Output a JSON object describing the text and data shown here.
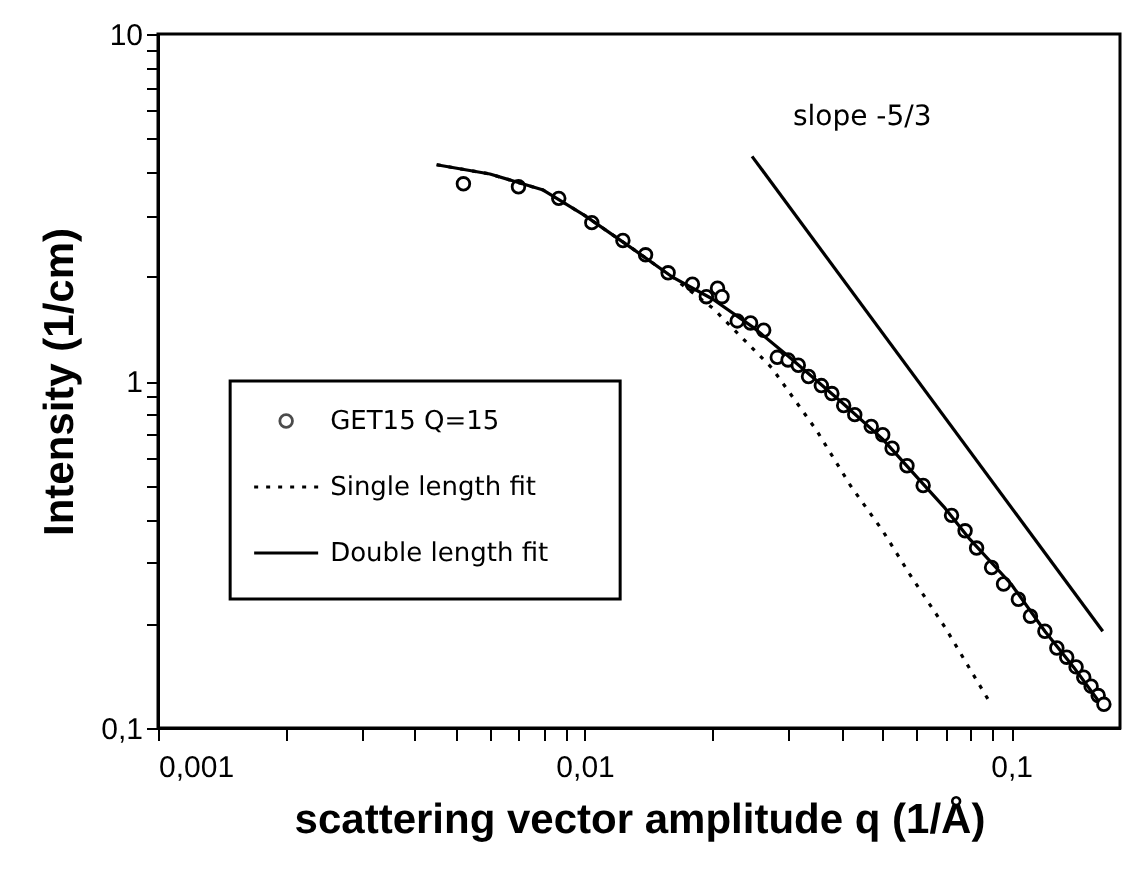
{
  "chart_data": {
    "type": "scatter",
    "xlabel": "scattering vector amplitude q (1/Å)",
    "ylabel": "Intensity (1/cm)",
    "log": "xy",
    "legend": "left",
    "xlim": [
      0.001,
      0.18
    ],
    "ylim": [
      0.1,
      10
    ],
    "xticks": [
      {
        "value": 0.001,
        "label": "0,001"
      },
      {
        "value": 0.002,
        "label": null
      },
      {
        "value": 0.003,
        "label": null
      },
      {
        "value": 0.004,
        "label": null
      },
      {
        "value": 0.005,
        "label": null
      },
      {
        "value": 0.006,
        "label": null
      },
      {
        "value": 0.007,
        "label": null
      },
      {
        "value": 0.008,
        "label": null
      },
      {
        "value": 0.009,
        "label": null
      },
      {
        "value": 0.01,
        "label": "0,01"
      },
      {
        "value": 0.02,
        "label": null
      },
      {
        "value": 0.03,
        "label": null
      },
      {
        "value": 0.04,
        "label": null
      },
      {
        "value": 0.05,
        "label": null
      },
      {
        "value": 0.06,
        "label": null
      },
      {
        "value": 0.07,
        "label": null
      },
      {
        "value": 0.08,
        "label": null
      },
      {
        "value": 0.09,
        "label": null
      },
      {
        "value": 0.1,
        "label": "0,1"
      }
    ],
    "yticks": [
      {
        "value": 0.1,
        "label": "0,1"
      },
      {
        "value": 0.2,
        "label": null
      },
      {
        "value": 0.3,
        "label": null
      },
      {
        "value": 0.4,
        "label": null
      },
      {
        "value": 0.5,
        "label": null
      },
      {
        "value": 0.6,
        "label": null
      },
      {
        "value": 0.7,
        "label": null
      },
      {
        "value": 0.8,
        "label": null
      },
      {
        "value": 0.9,
        "label": null
      },
      1,
      {
        "value": 2,
        "label": null
      },
      {
        "value": 3,
        "label": null
      },
      {
        "value": 4,
        "label": null
      },
      {
        "value": 5,
        "label": null
      },
      {
        "value": 6,
        "label": null
      },
      {
        "value": 7,
        "label": null
      },
      {
        "value": 8,
        "label": null
      },
      {
        "value": 9,
        "label": null
      },
      10
    ],
    "series": [
      {
        "name": "GET15 Q=15",
        "marker": "circle",
        "color": "#000000",
        "x": [
          0.0052,
          0.007,
          0.0087,
          0.0104,
          0.0123,
          0.0139,
          0.0157,
          0.0179,
          0.0193,
          0.0205,
          0.021,
          0.0228,
          0.0245,
          0.0263,
          0.0283,
          0.03,
          0.0317,
          0.0335,
          0.0359,
          0.038,
          0.0405,
          0.043,
          0.047,
          0.05,
          0.0526,
          0.057,
          0.0622,
          0.0725,
          0.078,
          0.083,
          0.09,
          0.096,
          0.104,
          0.111,
          0.12,
          0.128,
          0.135,
          0.142,
          0.148,
          0.154,
          0.16,
          0.165
        ],
        "values": [
          3.7,
          3.63,
          3.36,
          2.86,
          2.54,
          2.31,
          2.05,
          1.9,
          1.75,
          1.85,
          1.75,
          1.49,
          1.47,
          1.4,
          1.17,
          1.15,
          1.11,
          1.03,
          0.97,
          0.92,
          0.85,
          0.8,
          0.74,
          0.7,
          0.64,
          0.57,
          0.5,
          0.41,
          0.37,
          0.33,
          0.29,
          0.26,
          0.235,
          0.21,
          0.19,
          0.17,
          0.16,
          0.15,
          0.14,
          0.132,
          0.124,
          0.117
        ]
      },
      {
        "name": "Single length fit",
        "type": "line",
        "line_style": "dotted",
        "color": "#000000",
        "x": [
          0.0045,
          0.006,
          0.008,
          0.01,
          0.013,
          0.016,
          0.02,
          0.0275,
          0.035,
          0.042,
          0.05,
          0.058,
          0.07,
          0.089
        ],
        "values": [
          4.2,
          3.95,
          3.55,
          3.0,
          2.4,
          2.0,
          1.62,
          1.09,
          0.72,
          0.5,
          0.37,
          0.276,
          0.195,
          0.119
        ]
      },
      {
        "name": "Double length fit",
        "type": "line",
        "line_style": "solid",
        "color": "#000000",
        "x": [
          0.0045,
          0.006,
          0.008,
          0.01,
          0.013,
          0.016,
          0.02,
          0.025,
          0.03,
          0.04,
          0.05,
          0.06,
          0.07,
          0.08,
          0.1,
          0.12,
          0.14,
          0.16
        ],
        "values": [
          4.2,
          3.95,
          3.55,
          3.0,
          2.4,
          2.0,
          1.72,
          1.42,
          1.18,
          0.87,
          0.68,
          0.53,
          0.43,
          0.35,
          0.26,
          0.19,
          0.15,
          0.12
        ]
      },
      {
        "type": "line",
        "line_style": "solid",
        "color": "#000000",
        "x": [
          0.0247,
          0.164
        ],
        "values": [
          4.44,
          0.19
        ]
      }
    ],
    "annotations": [
      "slope -5/3"
    ]
  }
}
